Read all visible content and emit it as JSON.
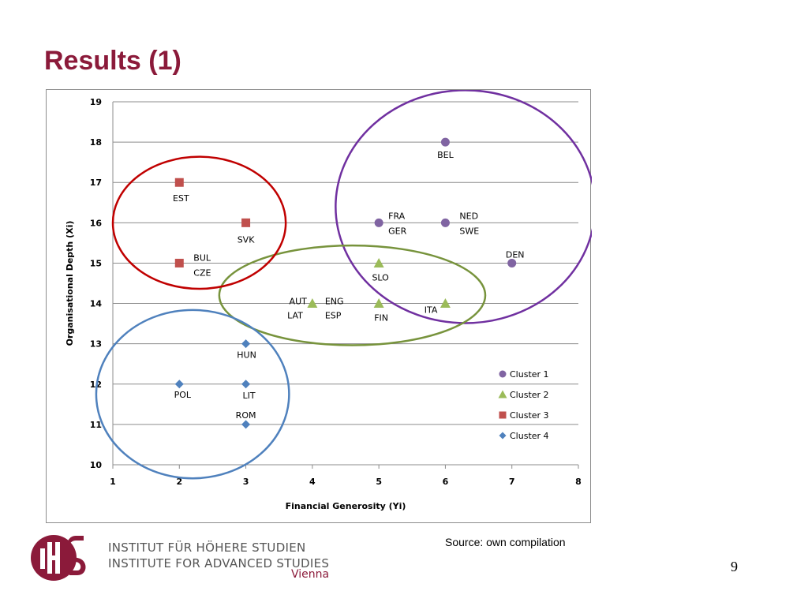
{
  "slide": {
    "title": "Results (1)",
    "source": "Source: own compilation",
    "page_number": "9"
  },
  "institute": {
    "name_de": "INSTITUT FÜR HÖHERE STUDIEN",
    "name_en": "INSTITUTE FOR ADVANCED STUDIES",
    "city": "Vienna",
    "logo_color": "#8b1a3a"
  },
  "chart_data": {
    "type": "scatter",
    "xlabel": "Financial Generosity (Yi)",
    "ylabel": "Organisational Depth (Xi)",
    "xlim": [
      1,
      8
    ],
    "ylim": [
      10,
      19
    ],
    "x_ticks": [
      "1",
      "2",
      "3",
      "4",
      "5",
      "6",
      "7",
      "8"
    ],
    "y_ticks": [
      "10",
      "11",
      "12",
      "13",
      "14",
      "15",
      "16",
      "17",
      "18",
      "19"
    ],
    "grid": "horizontal",
    "legend_position": "bottom-right",
    "series": [
      {
        "name": "Cluster 1",
        "marker": "circle",
        "color": "#8064a2",
        "ring_color": "#7030a0",
        "points": [
          {
            "x": 6,
            "y": 18,
            "label": "BEL"
          },
          {
            "x": 5,
            "y": 16,
            "label": "FRA"
          },
          {
            "x": 5,
            "y": 16,
            "label": "GER"
          },
          {
            "x": 6,
            "y": 16,
            "label": "NED"
          },
          {
            "x": 6,
            "y": 16,
            "label": "SWE"
          },
          {
            "x": 7,
            "y": 15,
            "label": "DEN"
          }
        ]
      },
      {
        "name": "Cluster 2",
        "marker": "triangle",
        "color": "#9bbb59",
        "ring_color": "#77933c",
        "points": [
          {
            "x": 5,
            "y": 15,
            "label": "SLO"
          },
          {
            "x": 4,
            "y": 14,
            "label": "AUT"
          },
          {
            "x": 4,
            "y": 14,
            "label": "LAT"
          },
          {
            "x": 4,
            "y": 14,
            "label": "ENG"
          },
          {
            "x": 4,
            "y": 14,
            "label": "ESP"
          },
          {
            "x": 5,
            "y": 14,
            "label": "FIN"
          },
          {
            "x": 6,
            "y": 14,
            "label": "ITA"
          }
        ]
      },
      {
        "name": "Cluster 3",
        "marker": "square",
        "color": "#c0504d",
        "ring_color": "#c00000",
        "points": [
          {
            "x": 2,
            "y": 17,
            "label": "EST"
          },
          {
            "x": 3,
            "y": 16,
            "label": "SVK"
          },
          {
            "x": 2,
            "y": 15,
            "label": "BUL"
          },
          {
            "x": 2,
            "y": 15,
            "label": "CZE"
          }
        ]
      },
      {
        "name": "Cluster 4",
        "marker": "diamond",
        "color": "#4f81bd",
        "ring_color": "#4f81bd",
        "points": [
          {
            "x": 3,
            "y": 13,
            "label": "HUN"
          },
          {
            "x": 2,
            "y": 12,
            "label": "POL"
          },
          {
            "x": 3,
            "y": 12,
            "label": "LIT"
          },
          {
            "x": 3,
            "y": 11,
            "label": "ROM"
          }
        ]
      }
    ]
  }
}
